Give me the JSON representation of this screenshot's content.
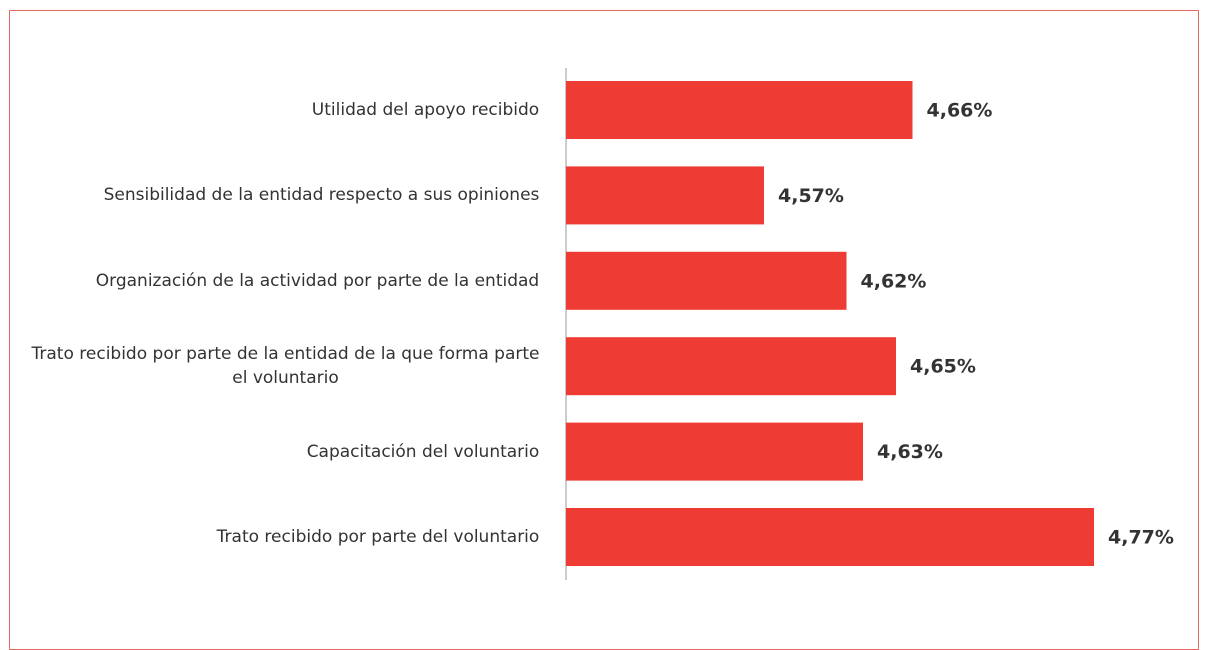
{
  "chart_data": {
    "type": "barh",
    "categories": [
      "Utilidad del apoyo recibido",
      "Sensibilidad de la entidad respecto a sus opiniones",
      "Organización de la actividad por parte de la entidad",
      "Trato recibido por parte de la entidad de la que forma parte el voluntario",
      "Capacitación del voluntario",
      "Trato recibido por parte del voluntario"
    ],
    "values": [
      4.66,
      4.57,
      4.62,
      4.65,
      4.63,
      4.77
    ],
    "value_labels": [
      "4,66%",
      "4,57%",
      "4,62%",
      "4,65%",
      "4,63%",
      "4,77%"
    ],
    "color": "#ee3b33",
    "xlim": [
      4.45,
      4.8
    ]
  }
}
